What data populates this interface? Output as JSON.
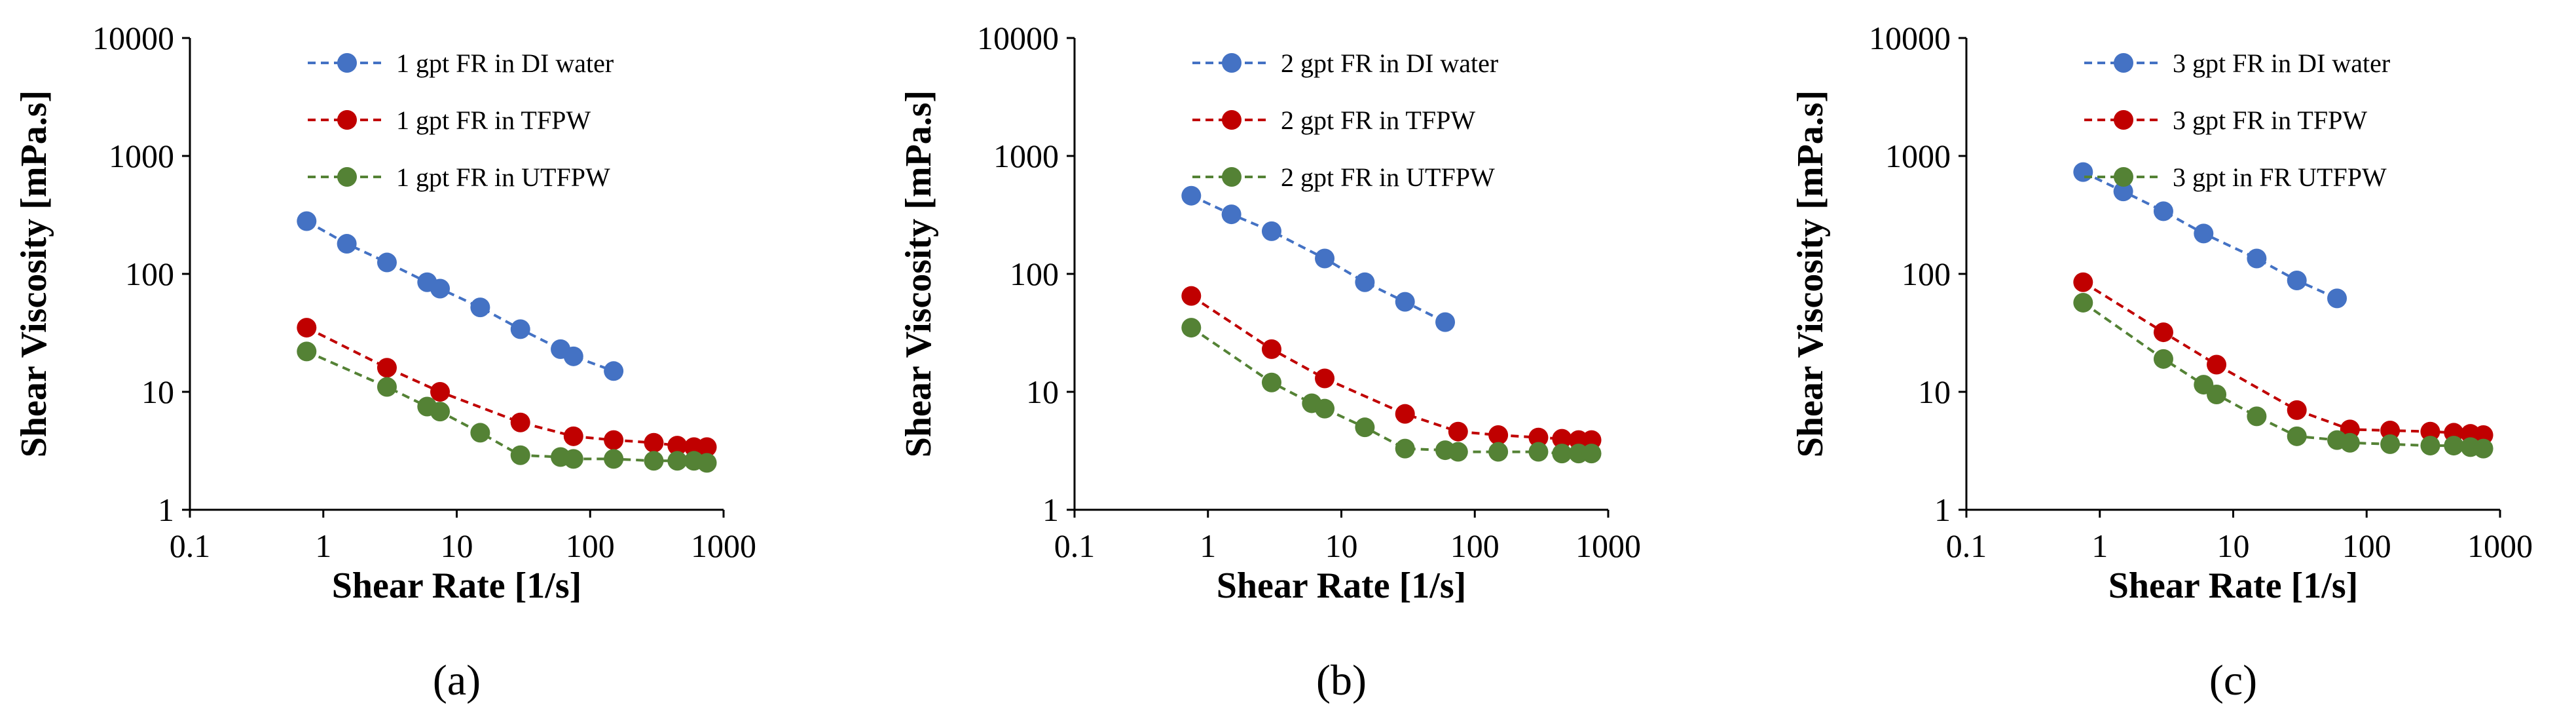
{
  "colors": {
    "blue": "#4472C4",
    "red": "#C00000",
    "green": "#548235"
  },
  "chart_data": [
    {
      "type": "line",
      "caption": "(a)",
      "xlabel": "Shear Rate [1/s]",
      "ylabel": "Shear Viscosity [mPa.s]",
      "xscale": "log",
      "yscale": "log",
      "xlim": [
        0.1,
        1000
      ],
      "ylim": [
        1,
        10000
      ],
      "xticks": [
        "0.1",
        "1",
        "10",
        "100",
        "1000"
      ],
      "yticks": [
        "1",
        "10",
        "100",
        "1000",
        "10000"
      ],
      "legend_position": "top-right",
      "series": [
        {
          "name": "1 gpt FR in DI water",
          "color": "blue",
          "x": [
            0.75,
            1.5,
            3,
            6,
            7.5,
            15,
            30,
            60,
            75,
            150
          ],
          "y": [
            280,
            180,
            125,
            85,
            75,
            52,
            34,
            23,
            20,
            15
          ]
        },
        {
          "name": "1 gpt FR in TFPW",
          "color": "red",
          "x": [
            0.75,
            3,
            7.5,
            30,
            75,
            150,
            300,
            450,
            600,
            750
          ],
          "y": [
            35,
            16,
            10,
            5.5,
            4.2,
            3.9,
            3.7,
            3.5,
            3.4,
            3.4
          ]
        },
        {
          "name": "1 gpt FR in UTFPW",
          "color": "green",
          "x": [
            0.75,
            3,
            6,
            7.5,
            15,
            30,
            60,
            75,
            150,
            300,
            450,
            600,
            750
          ],
          "y": [
            22,
            11,
            7.5,
            6.8,
            4.5,
            2.9,
            2.8,
            2.7,
            2.7,
            2.6,
            2.6,
            2.6,
            2.5
          ]
        }
      ]
    },
    {
      "type": "line",
      "caption": "(b)",
      "xlabel": "Shear Rate [1/s]",
      "ylabel": "Shear Viscosity [mPa.s]",
      "xscale": "log",
      "yscale": "log",
      "xlim": [
        0.1,
        1000
      ],
      "ylim": [
        1,
        10000
      ],
      "xticks": [
        "0.1",
        "1",
        "10",
        "100",
        "1000"
      ],
      "yticks": [
        "1",
        "10",
        "100",
        "1000",
        "10000"
      ],
      "legend_position": "top-right",
      "series": [
        {
          "name": "2 gpt FR in DI water",
          "color": "blue",
          "x": [
            0.75,
            1.5,
            3,
            7.5,
            15,
            30,
            60
          ],
          "y": [
            460,
            320,
            230,
            135,
            85,
            58,
            39
          ]
        },
        {
          "name": "2 gpt FR in TFPW",
          "color": "red",
          "x": [
            0.75,
            3,
            7.5,
            30,
            75,
            150,
            300,
            450,
            600,
            750
          ],
          "y": [
            65,
            23,
            13,
            6.5,
            4.6,
            4.3,
            4.1,
            4.0,
            3.9,
            3.9
          ]
        },
        {
          "name": "2 gpt FR in UTFPW",
          "color": "green",
          "x": [
            0.75,
            3,
            6,
            7.5,
            15,
            30,
            60,
            75,
            150,
            300,
            450,
            600,
            750
          ],
          "y": [
            35,
            12,
            8,
            7.2,
            5,
            3.3,
            3.2,
            3.1,
            3.1,
            3.1,
            3.0,
            3.0,
            3.0
          ]
        }
      ]
    },
    {
      "type": "line",
      "caption": "(c)",
      "xlabel": "Shear Rate [1/s]",
      "ylabel": "Shear Viscosity [mPa.s]",
      "xscale": "log",
      "yscale": "log",
      "xlim": [
        0.1,
        1000
      ],
      "ylim": [
        1,
        10000
      ],
      "xticks": [
        "0.1",
        "1",
        "10",
        "100",
        "1000"
      ],
      "yticks": [
        "1",
        "10",
        "100",
        "1000",
        "10000"
      ],
      "legend_position": "top-right",
      "series": [
        {
          "name": "3 gpt FR in DI water",
          "color": "blue",
          "x": [
            0.75,
            1.5,
            3,
            6,
            15,
            30,
            60
          ],
          "y": [
            730,
            500,
            340,
            220,
            135,
            88,
            62
          ]
        },
        {
          "name": "3 gpt FR in TFPW",
          "color": "red",
          "x": [
            0.75,
            3,
            7.5,
            30,
            75,
            150,
            300,
            450,
            600,
            750
          ],
          "y": [
            85,
            32,
            17,
            7,
            4.8,
            4.7,
            4.6,
            4.5,
            4.4,
            4.3
          ]
        },
        {
          "name": "3 gpt in FR UTFPW",
          "color": "green",
          "x": [
            0.75,
            3,
            6,
            7.5,
            15,
            30,
            60,
            75,
            150,
            300,
            450,
            600,
            750
          ],
          "y": [
            57,
            19,
            11.5,
            9.5,
            6.2,
            4.2,
            3.9,
            3.7,
            3.6,
            3.5,
            3.5,
            3.4,
            3.3
          ]
        }
      ]
    }
  ]
}
